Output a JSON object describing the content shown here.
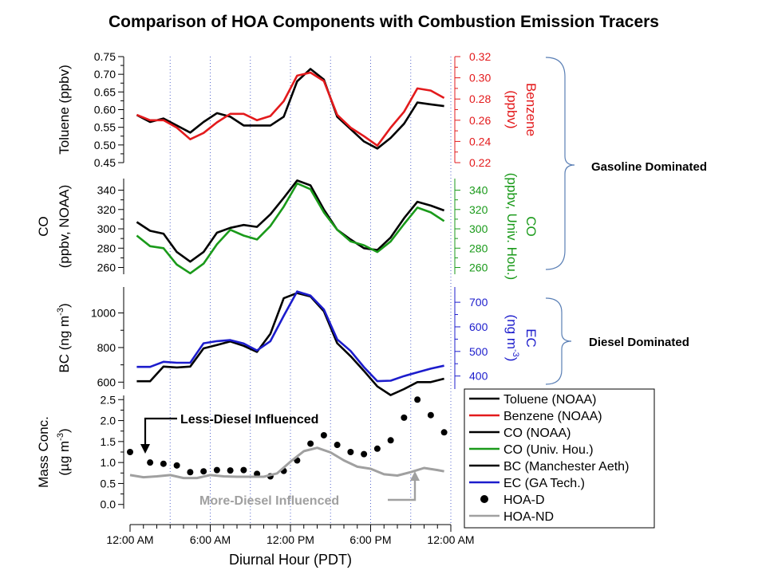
{
  "chart_data": {
    "type": "line",
    "title": "Comparison of HOA Components with Combustion Emission Tracers",
    "xlabel": "Diurnal Hour (PDT)",
    "xlim": [
      0,
      24
    ],
    "x_ticks": [
      {
        "v": 0,
        "label": "12:00 AM"
      },
      {
        "v": 6,
        "label": "6:00 AM"
      },
      {
        "v": 12,
        "label": "12:00 PM"
      },
      {
        "v": 18,
        "label": "6:00 PM"
      },
      {
        "v": 24,
        "label": "12:00 AM"
      }
    ],
    "vgrid_hours": [
      3,
      6,
      9,
      12,
      15,
      18,
      21,
      24
    ],
    "colors": {
      "black": "#000000",
      "red": "#e31a1c",
      "green": "#1a9a1a",
      "blue": "#1c1ccc",
      "gray": "#a0a0a0",
      "bracket": "#5a7fb5"
    },
    "panels": [
      {
        "id": "gasoline-voc",
        "left_axis": {
          "label": "Toluene (ppbv)",
          "range": [
            0.45,
            0.75
          ],
          "ticks": [
            0.45,
            0.5,
            0.55,
            0.6,
            0.65,
            0.7,
            0.75
          ],
          "labels": [
            "0.45",
            "0.50",
            "0.55",
            "0.60",
            "0.65",
            "0.70",
            "0.75"
          ]
        },
        "right_axis": {
          "label_lines": [
            "Benzene",
            "(ppbv)"
          ],
          "range": [
            0.22,
            0.32
          ],
          "ticks": [
            0.22,
            0.24,
            0.26,
            0.28,
            0.3,
            0.32
          ],
          "labels": [
            "0.22",
            "0.24",
            "0.26",
            "0.28",
            "0.30",
            "0.32"
          ],
          "color": "#e31a1c"
        },
        "series": [
          {
            "color": "#000000",
            "axis": "left",
            "x": [
              0.5,
              1.5,
              2.5,
              3.5,
              4.5,
              5.5,
              6.5,
              7.5,
              8.5,
              9.5,
              10.5,
              11.5,
              12.5,
              13.5,
              14.5,
              15.5,
              16.5,
              17.5,
              18.5,
              19.5,
              20.5,
              21.5,
              22.5,
              23.5
            ],
            "y": [
              0.585,
              0.565,
              0.575,
              0.555,
              0.535,
              0.565,
              0.59,
              0.58,
              0.555,
              0.555,
              0.555,
              0.58,
              0.68,
              0.715,
              0.685,
              0.58,
              0.545,
              0.51,
              0.49,
              0.52,
              0.56,
              0.62,
              0.615,
              0.61
            ]
          },
          {
            "color": "#e31a1c",
            "axis": "right",
            "x": [
              0.5,
              1.5,
              2.5,
              3.5,
              4.5,
              5.5,
              6.5,
              7.5,
              8.5,
              9.5,
              10.5,
              11.5,
              12.5,
              13.5,
              14.5,
              15.5,
              16.5,
              17.5,
              18.5,
              19.5,
              20.5,
              21.5,
              22.5,
              23.5
            ],
            "y": [
              0.265,
              0.26,
              0.26,
              0.253,
              0.242,
              0.248,
              0.258,
              0.266,
              0.266,
              0.26,
              0.264,
              0.278,
              0.302,
              0.305,
              0.297,
              0.265,
              0.253,
              0.245,
              0.236,
              0.253,
              0.268,
              0.29,
              0.288,
              0.281
            ]
          }
        ]
      },
      {
        "id": "co",
        "left_axis": {
          "label_lines": [
            "CO",
            "(ppbv, NOAA)"
          ],
          "range": [
            253,
            352
          ],
          "ticks": [
            260,
            280,
            300,
            320,
            340
          ],
          "labels": [
            "260",
            "280",
            "300",
            "320",
            "340"
          ]
        },
        "right_axis": {
          "label_lines": [
            "CO",
            "(ppbv, Univ. Hou.)"
          ],
          "range": [
            253,
            352
          ],
          "ticks": [
            260,
            280,
            300,
            320,
            340
          ],
          "labels": [
            "260",
            "280",
            "300",
            "320",
            "340"
          ],
          "color": "#1a9a1a"
        },
        "series": [
          {
            "color": "#000000",
            "axis": "left",
            "x": [
              0.5,
              1.5,
              2.5,
              3.5,
              4.5,
              5.5,
              6.5,
              7.5,
              8.5,
              9.5,
              10.5,
              11.5,
              12.5,
              13.5,
              14.5,
              15.5,
              16.5,
              17.5,
              18.5,
              19.5,
              20.5,
              21.5,
              22.5,
              23.5
            ],
            "y": [
              307,
              298,
              295,
              276,
              266,
              276,
              296,
              301,
              304,
              302,
              315,
              332,
              350,
              345,
              320,
              299,
              289,
              280,
              278,
              291,
              311,
              328,
              324,
              319
            ]
          },
          {
            "color": "#1a9a1a",
            "axis": "right",
            "x": [
              0.5,
              1.5,
              2.5,
              3.5,
              4.5,
              5.5,
              6.5,
              7.5,
              8.5,
              9.5,
              10.5,
              11.5,
              12.5,
              13.5,
              14.5,
              15.5,
              16.5,
              17.5,
              18.5,
              19.5,
              20.5,
              21.5,
              22.5,
              23.5
            ],
            "y": [
              293,
              282,
              280,
              263,
              254,
              264,
              284,
              299,
              293,
              289,
              303,
              323,
              347,
              341,
              317,
              299,
              287,
              283,
              276,
              287,
              305,
              322,
              317,
              308
            ]
          }
        ]
      },
      {
        "id": "diesel-bc",
        "left_axis": {
          "label": "BC (ng m",
          "label_sup": "-3",
          "label_end": ")",
          "range": [
            560,
            1150
          ],
          "ticks": [
            600,
            800,
            1000
          ],
          "labels": [
            "600",
            "800",
            "1000"
          ]
        },
        "right_axis": {
          "label_lines": [
            "EC",
            "(ng m"
          ],
          "label_sup": "-3",
          "label_end": ")",
          "range": [
            347,
            762
          ],
          "ticks": [
            400,
            500,
            600,
            700
          ],
          "labels": [
            "400",
            "500",
            "600",
            "700"
          ],
          "color": "#1c1ccc"
        },
        "series": [
          {
            "color": "#000000",
            "axis": "left",
            "x": [
              0.5,
              1.5,
              2.5,
              3.5,
              4.5,
              5.5,
              6.5,
              7.5,
              8.5,
              9.5,
              10.5,
              11.5,
              12.5,
              13.5,
              14.5,
              15.5,
              16.5,
              17.5,
              18.5,
              19.5,
              20.5,
              21.5,
              22.5,
              23.5
            ],
            "y": [
              605,
              605,
              690,
              685,
              690,
              795,
              815,
              835,
              810,
              775,
              880,
              1085,
              1115,
              1095,
              1010,
              825,
              750,
              665,
              575,
              525,
              560,
              600,
              600,
              620
            ]
          },
          {
            "color": "#1c1ccc",
            "axis": "right",
            "x": [
              0.5,
              1.5,
              2.5,
              3.5,
              4.5,
              5.5,
              6.5,
              7.5,
              8.5,
              9.5,
              10.5,
              11.5,
              12.5,
              13.5,
              14.5,
              15.5,
              16.5,
              17.5,
              18.5,
              19.5,
              20.5,
              21.5,
              22.5,
              23.5
            ],
            "y": [
              437,
              437,
              458,
              454,
              454,
              533,
              542,
              546,
              532,
              504,
              542,
              645,
              744,
              727,
              671,
              549,
              502,
              436,
              379,
              381,
              400,
              415,
              430,
              442
            ]
          }
        ]
      },
      {
        "id": "hoa",
        "left_axis": {
          "label_lines": [
            "Mass Conc.",
            "(µg m"
          ],
          "label_sup": "-3",
          "label_end": ")",
          "range": [
            -0.1,
            2.6
          ],
          "ticks": [
            0.0,
            0.5,
            1.0,
            1.5,
            2.0,
            2.5
          ],
          "labels": [
            "0.0",
            "0.5",
            "1.0",
            "1.5",
            "2.0",
            "2.5"
          ]
        },
        "series": [
          {
            "color": "#000000",
            "style": "markers",
            "x": [
              0,
              1.5,
              2.5,
              3.5,
              4.5,
              5.5,
              6.5,
              7.5,
              8.5,
              9.5,
              10.5,
              11.5,
              12.5,
              13.5,
              14.5,
              15.5,
              16.5,
              17.5,
              18.5,
              19.5,
              20.5,
              21.5,
              22.5,
              23.5
            ],
            "y": [
              1.25,
              1.0,
              0.97,
              0.93,
              0.77,
              0.79,
              0.82,
              0.81,
              0.82,
              0.73,
              0.67,
              0.8,
              1.05,
              1.45,
              1.65,
              1.42,
              1.25,
              1.2,
              1.33,
              1.53,
              2.07,
              2.5,
              2.13,
              1.72
            ]
          },
          {
            "color": "#a0a0a0",
            "style": "line",
            "x": [
              0,
              1,
              2,
              3,
              4,
              5,
              6,
              7,
              8,
              9,
              10,
              11,
              12,
              13,
              14,
              15,
              16,
              17,
              18,
              19,
              20,
              21,
              22,
              23,
              23.5
            ],
            "y": [
              0.7,
              0.65,
              0.67,
              0.7,
              0.63,
              0.63,
              0.7,
              0.67,
              0.66,
              0.66,
              0.66,
              0.74,
              1.02,
              1.27,
              1.35,
              1.24,
              1.05,
              0.9,
              0.85,
              0.72,
              0.69,
              0.77,
              0.87,
              0.82,
              0.79
            ]
          }
        ]
      }
    ],
    "legend": {
      "placement": "right",
      "entries": [
        {
          "label": "Toluene (NOAA)",
          "color": "#000000",
          "kind": "line"
        },
        {
          "label": "Benzene (NOAA)",
          "color": "#e31a1c",
          "kind": "line"
        },
        {
          "label": "CO (NOAA)",
          "color": "#000000",
          "kind": "line"
        },
        {
          "label": "CO (Univ. Hou.)",
          "color": "#1a9a1a",
          "kind": "line"
        },
        {
          "label": "BC (Manchester Aeth)",
          "color": "#000000",
          "kind": "line"
        },
        {
          "label": "EC (GA Tech.)",
          "color": "#1c1ccc",
          "kind": "line"
        },
        {
          "label": "HOA-D",
          "color": "#000000",
          "kind": "marker"
        },
        {
          "label": "HOA-ND",
          "color": "#a0a0a0",
          "kind": "line"
        }
      ]
    },
    "annotations": {
      "gasoline": "Gasoline Dominated",
      "diesel": "Diesel Dominated",
      "less_diesel": "Less-Diesel Influenced",
      "more_diesel": "More-Diesel Influenced"
    }
  }
}
